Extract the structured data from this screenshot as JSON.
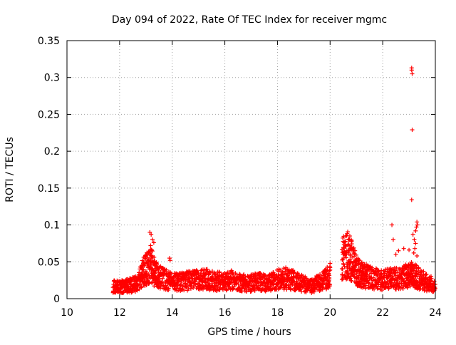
{
  "chart_data": {
    "type": "scatter",
    "title": "Day 094 of 2022, Rate Of TEC Index for receiver mgmc",
    "xlabel": "GPS time / hours",
    "ylabel": "ROTI / TECUs",
    "xlim": [
      10,
      24
    ],
    "ylim": [
      0,
      0.35
    ],
    "xticks": [
      "10",
      "12",
      "14",
      "16",
      "18",
      "20",
      "22",
      "24"
    ],
    "yticks": [
      "0",
      "0.05",
      "0.1",
      "0.15",
      "0.2",
      "0.25",
      "0.3",
      "0.35"
    ],
    "grid": true,
    "legend": "none",
    "marker": "+",
    "color": "#ff0000",
    "profile": [
      [
        11.75,
        0.018
      ],
      [
        12.0,
        0.016
      ],
      [
        12.3,
        0.017
      ],
      [
        12.5,
        0.019
      ],
      [
        12.7,
        0.022
      ],
      [
        12.85,
        0.035
      ],
      [
        13.0,
        0.04
      ],
      [
        13.2,
        0.045
      ],
      [
        13.4,
        0.032
      ],
      [
        13.6,
        0.028
      ],
      [
        13.8,
        0.025
      ],
      [
        14.0,
        0.022
      ],
      [
        14.3,
        0.023
      ],
      [
        14.6,
        0.024
      ],
      [
        15.0,
        0.025
      ],
      [
        15.3,
        0.026
      ],
      [
        15.6,
        0.024
      ],
      [
        16.0,
        0.023
      ],
      [
        16.3,
        0.025
      ],
      [
        16.6,
        0.022
      ],
      [
        17.0,
        0.021
      ],
      [
        17.3,
        0.024
      ],
      [
        17.6,
        0.02
      ],
      [
        17.9,
        0.024
      ],
      [
        18.2,
        0.028
      ],
      [
        18.5,
        0.026
      ],
      [
        18.8,
        0.022
      ],
      [
        19.0,
        0.02
      ],
      [
        19.3,
        0.017
      ],
      [
        19.6,
        0.022
      ],
      [
        19.9,
        0.028
      ],
      [
        20.5,
        0.055
      ],
      [
        20.7,
        0.06
      ],
      [
        20.9,
        0.045
      ],
      [
        21.1,
        0.035
      ],
      [
        21.4,
        0.03
      ],
      [
        21.7,
        0.027
      ],
      [
        22.0,
        0.025
      ],
      [
        22.3,
        0.027
      ],
      [
        22.6,
        0.028
      ],
      [
        22.9,
        0.03
      ],
      [
        23.1,
        0.032
      ],
      [
        23.3,
        0.03
      ],
      [
        23.5,
        0.025
      ],
      [
        23.8,
        0.02
      ],
      [
        24.0,
        0.017
      ]
    ],
    "outliers": [
      {
        "x": 13.15,
        "y": 0.09
      },
      {
        "x": 13.2,
        "y": 0.087
      },
      {
        "x": 13.25,
        "y": 0.08
      },
      {
        "x": 13.18,
        "y": 0.072
      },
      {
        "x": 13.22,
        "y": 0.066
      },
      {
        "x": 13.3,
        "y": 0.076
      },
      {
        "x": 13.1,
        "y": 0.063
      },
      {
        "x": 13.9,
        "y": 0.055
      },
      {
        "x": 13.92,
        "y": 0.052
      },
      {
        "x": 20.75,
        "y": 0.085
      },
      {
        "x": 20.72,
        "y": 0.08
      },
      {
        "x": 20.7,
        "y": 0.074
      },
      {
        "x": 20.78,
        "y": 0.07
      },
      {
        "x": 20.55,
        "y": 0.063
      },
      {
        "x": 20.9,
        "y": 0.062
      },
      {
        "x": 22.35,
        "y": 0.1
      },
      {
        "x": 22.4,
        "y": 0.08
      },
      {
        "x": 22.5,
        "y": 0.06
      },
      {
        "x": 23.1,
        "y": 0.313
      },
      {
        "x": 23.1,
        "y": 0.31
      },
      {
        "x": 23.12,
        "y": 0.305
      },
      {
        "x": 23.12,
        "y": 0.229
      },
      {
        "x": 23.1,
        "y": 0.134
      },
      {
        "x": 23.3,
        "y": 0.104
      },
      {
        "x": 23.32,
        "y": 0.1
      },
      {
        "x": 23.28,
        "y": 0.097
      },
      {
        "x": 23.25,
        "y": 0.092
      },
      {
        "x": 23.15,
        "y": 0.087
      },
      {
        "x": 23.2,
        "y": 0.08
      },
      {
        "x": 23.25,
        "y": 0.075
      },
      {
        "x": 23.22,
        "y": 0.068
      },
      {
        "x": 23.18,
        "y": 0.062
      },
      {
        "x": 23.3,
        "y": 0.058
      },
      {
        "x": 22.8,
        "y": 0.068
      },
      {
        "x": 22.6,
        "y": 0.065
      },
      {
        "x": 23.0,
        "y": 0.066
      }
    ]
  }
}
